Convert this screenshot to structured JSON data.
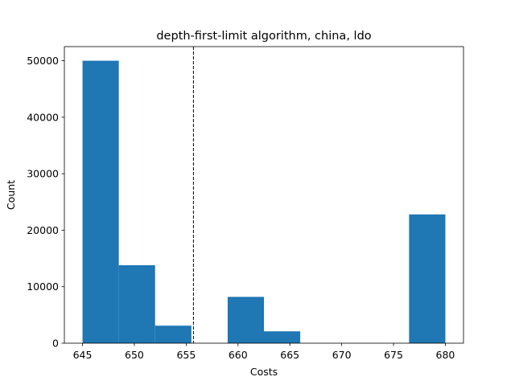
{
  "chart_data": {
    "type": "bar",
    "title": "depth-first-limit algorithm, china, ldo",
    "xlabel": "Costs",
    "ylabel": "Count",
    "xlim": [
      643.25,
      681.75
    ],
    "ylim": [
      0,
      52500
    ],
    "x_ticks": [
      645,
      650,
      655,
      660,
      665,
      670,
      675,
      680
    ],
    "y_ticks": [
      0,
      10000,
      20000,
      30000,
      40000,
      50000
    ],
    "bins": [
      {
        "x0": 645.0,
        "x1": 648.5,
        "count": 50000
      },
      {
        "x0": 648.5,
        "x1": 652.0,
        "count": 13800
      },
      {
        "x0": 652.0,
        "x1": 655.5,
        "count": 3100
      },
      {
        "x0": 655.5,
        "x1": 659.0,
        "count": 0
      },
      {
        "x0": 659.0,
        "x1": 662.5,
        "count": 8200
      },
      {
        "x0": 662.5,
        "x1": 666.0,
        "count": 2100
      },
      {
        "x0": 666.0,
        "x1": 669.5,
        "count": 0
      },
      {
        "x0": 669.5,
        "x1": 673.0,
        "count": 0
      },
      {
        "x0": 673.0,
        "x1": 676.5,
        "count": 0
      },
      {
        "x0": 676.5,
        "x1": 680.0,
        "count": 22800
      }
    ],
    "mean_line": {
      "x": 655.7,
      "style": "dashed"
    },
    "bar_color": "#1f77b4",
    "grid": false,
    "legend": "none"
  }
}
